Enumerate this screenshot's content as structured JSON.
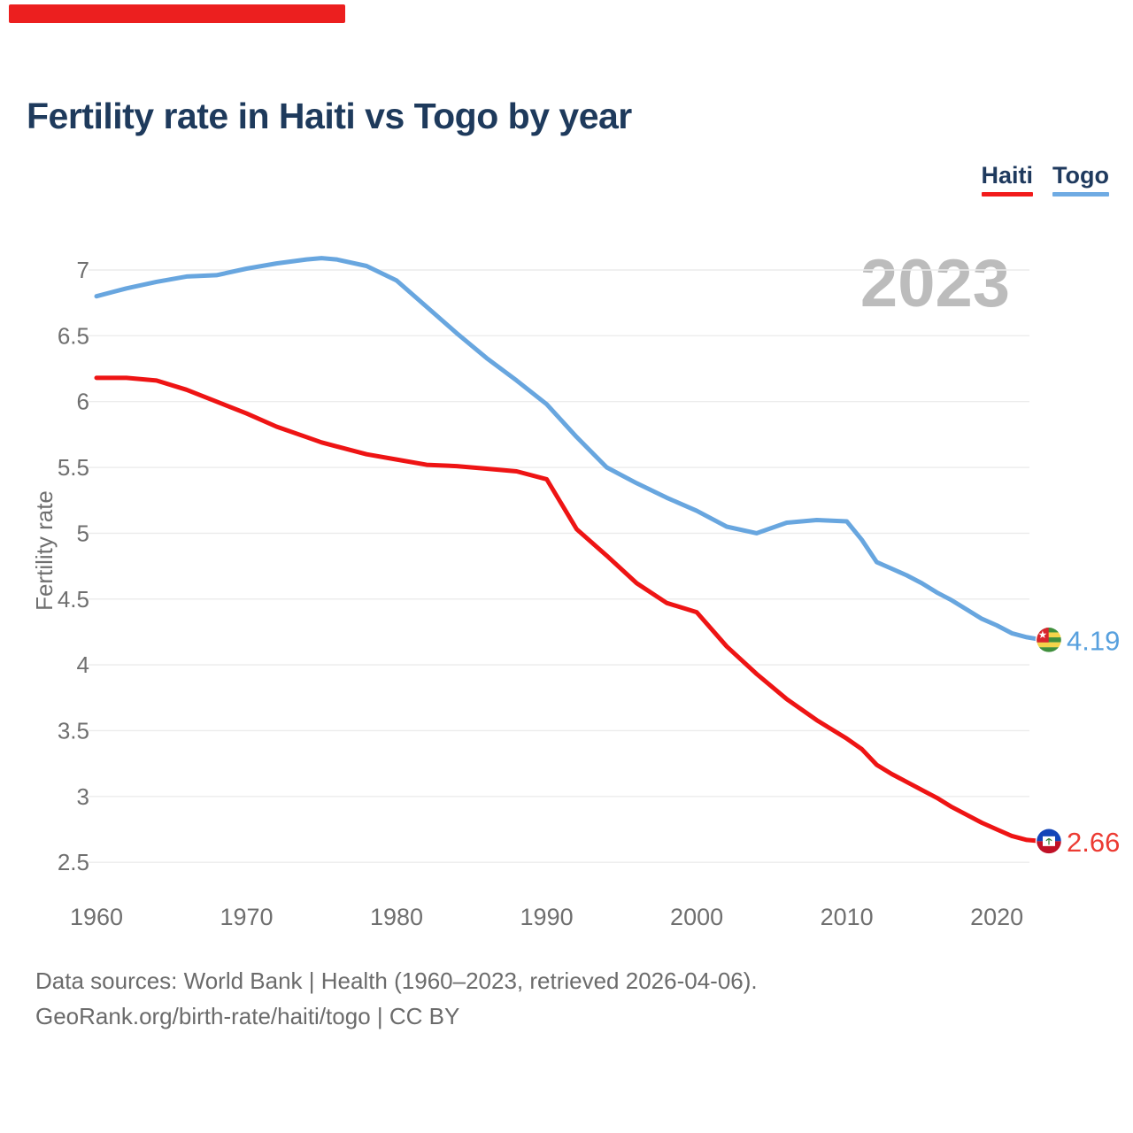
{
  "title": "Fertility rate in Haiti vs Togo by year",
  "watermark_year": "2023",
  "legend": [
    {
      "label": "Haiti",
      "color": "#f21b1b"
    },
    {
      "label": "Togo",
      "color": "#6fabe3"
    }
  ],
  "y_axis": {
    "label": "Fertility rate",
    "ticks": [
      {
        "label": "7",
        "value": 7
      },
      {
        "label": "6.5",
        "value": 6.5
      },
      {
        "label": "6",
        "value": 6
      },
      {
        "label": "5.5",
        "value": 5.5
      },
      {
        "label": "5",
        "value": 5
      },
      {
        "label": "4.5",
        "value": 4.5
      },
      {
        "label": "4",
        "value": 4
      },
      {
        "label": "3.5",
        "value": 3.5
      },
      {
        "label": "3",
        "value": 3
      },
      {
        "label": "2.5",
        "value": 2.5
      }
    ]
  },
  "x_axis": {
    "ticks": [
      {
        "label": "1960",
        "value": 1960
      },
      {
        "label": "1970",
        "value": 1970
      },
      {
        "label": "1980",
        "value": 1980
      },
      {
        "label": "1990",
        "value": 1990
      },
      {
        "label": "2000",
        "value": 2000
      },
      {
        "label": "2010",
        "value": 2010
      },
      {
        "label": "2020",
        "value": 2020
      }
    ]
  },
  "end_labels": {
    "togo": {
      "series": "Togo",
      "value_label": "4.19",
      "value": 4.19
    },
    "haiti": {
      "series": "Haiti",
      "value_label": "2.66",
      "value": 2.66
    }
  },
  "footer": {
    "line1": "Data sources: World Bank | Health (1960–2023, retrieved 2026-04-06).",
    "line2": "GeoRank.org/birth-rate/haiti/togo | CC BY"
  },
  "colors": {
    "progress_bar": "#ec1f1f",
    "title_navy": "#1e3a5c",
    "haiti_line": "#ee1414",
    "haiti_text": "#ec3b33",
    "togo_line": "#68a6df",
    "togo_text": "#57a0de",
    "gridline": "#ececec",
    "tick_text": "#6f6f6f",
    "watermark": "#bcbcbc",
    "footer_text": "#6b6b6b",
    "flag_togo_green": "#3f8f3c",
    "flag_togo_yellow": "#f4d44a",
    "flag_togo_red": "#d8252d",
    "flag_haiti_blue": "#1445b8",
    "flag_haiti_red": "#c01127",
    "flag_haiti_palm": "#2f7d33"
  },
  "chart_data": {
    "type": "line",
    "title": "Fertility rate in Haiti vs Togo by year",
    "xlabel": "",
    "ylabel": "Fertility rate",
    "xlim": [
      1960,
      2023
    ],
    "ylim": [
      2.5,
      7
    ],
    "grid": true,
    "legend_position": "top-right",
    "current_year_marker": 2023,
    "x": [
      1960,
      1962,
      1964,
      1966,
      1968,
      1970,
      1972,
      1974,
      1975,
      1976,
      1978,
      1980,
      1982,
      1984,
      1986,
      1988,
      1990,
      1992,
      1994,
      1996,
      1998,
      2000,
      2002,
      2004,
      2006,
      2008,
      2010,
      2011,
      2012,
      2013,
      2014,
      2015,
      2016,
      2017,
      2018,
      2019,
      2020,
      2021,
      2022,
      2023
    ],
    "series": [
      {
        "name": "Togo",
        "color": "#68a6df",
        "end_value": 4.19,
        "values": [
          6.8,
          6.86,
          6.91,
          6.95,
          6.96,
          7.01,
          7.05,
          7.08,
          7.09,
          7.08,
          7.03,
          6.92,
          6.72,
          6.52,
          6.33,
          6.16,
          5.98,
          5.73,
          5.5,
          5.38,
          5.27,
          5.17,
          5.05,
          5.0,
          5.08,
          5.1,
          5.09,
          4.95,
          4.78,
          4.73,
          4.68,
          4.62,
          4.55,
          4.49,
          4.42,
          4.35,
          4.3,
          4.24,
          4.21,
          4.19
        ]
      },
      {
        "name": "Haiti",
        "color": "#ee1414",
        "end_value": 2.66,
        "values": [
          6.18,
          6.18,
          6.16,
          6.09,
          6.0,
          5.91,
          5.81,
          5.73,
          5.69,
          5.66,
          5.6,
          5.56,
          5.52,
          5.51,
          5.49,
          5.47,
          5.41,
          5.03,
          4.83,
          4.62,
          4.47,
          4.4,
          4.14,
          3.93,
          3.74,
          3.58,
          3.44,
          3.36,
          3.24,
          3.17,
          3.11,
          3.05,
          2.99,
          2.92,
          2.86,
          2.8,
          2.75,
          2.7,
          2.67,
          2.66
        ]
      }
    ]
  }
}
